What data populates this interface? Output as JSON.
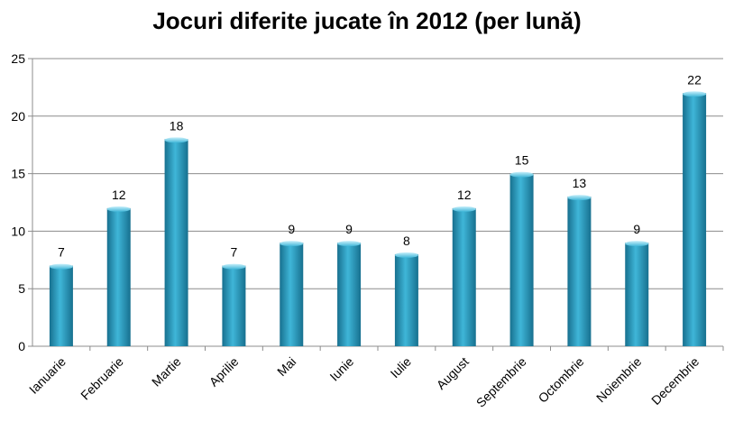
{
  "chart_data": {
    "type": "bar",
    "title": "Jocuri diferite jucate în 2012 (per lună)",
    "xlabel": "",
    "ylabel": "",
    "categories": [
      "Ianuarie",
      "Februarie",
      "Martie",
      "Aprilie",
      "Mai",
      "Iunie",
      "Iulie",
      "August",
      "Septembrie",
      "Octombrie",
      "Noiembrie",
      "Decembrie"
    ],
    "values": [
      7,
      12,
      18,
      7,
      9,
      9,
      8,
      12,
      15,
      13,
      9,
      22
    ],
    "ylim": [
      0,
      25
    ],
    "yticks": [
      0,
      5,
      10,
      15,
      20,
      25
    ],
    "grid": true,
    "legend": "none",
    "bar_color": "#3fb6d8",
    "bar_dark_color": "#17708f",
    "grid_color": "#8c8c8c"
  }
}
